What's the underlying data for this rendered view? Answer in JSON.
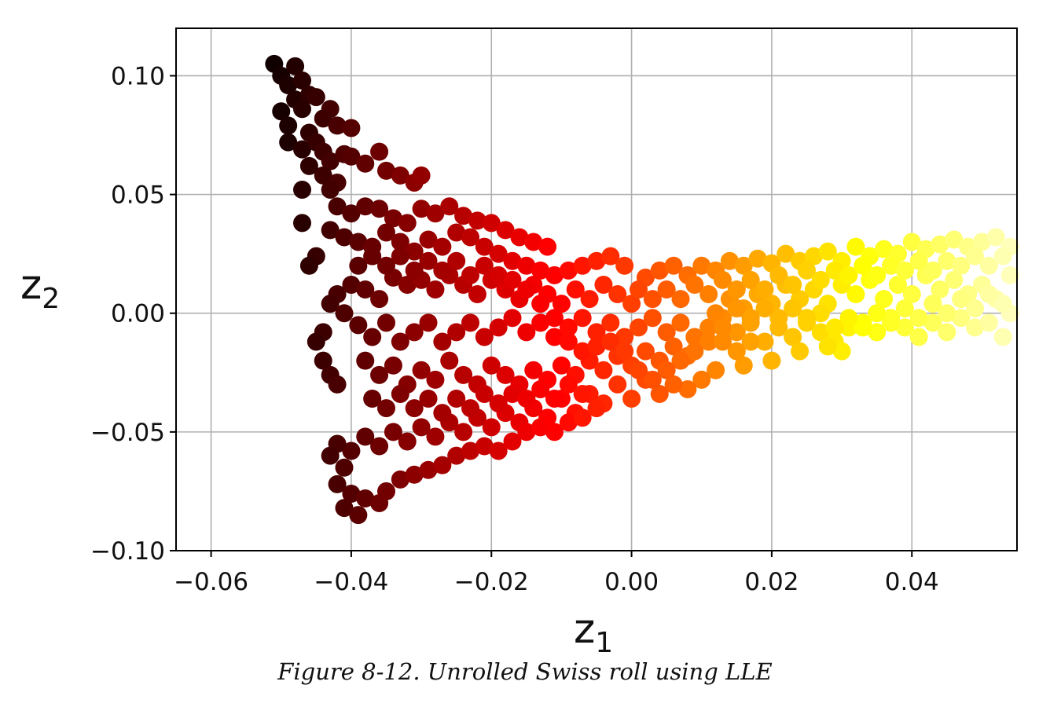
{
  "caption": "Figure 8-12. Unrolled Swiss roll using LLE",
  "chart_data": {
    "type": "scatter",
    "title": "",
    "xlabel": "z",
    "xlabel_sub": "1",
    "ylabel": "z",
    "ylabel_sub": "2",
    "xlim": [
      -0.065,
      0.055
    ],
    "ylim": [
      -0.1,
      0.12
    ],
    "xticks": [
      -0.06,
      -0.04,
      -0.02,
      0.0,
      0.02,
      0.04
    ],
    "xtick_labels": [
      "−0.06",
      "−0.04",
      "−0.02",
      "0.00",
      "0.02",
      "0.04"
    ],
    "yticks": [
      -0.1,
      -0.05,
      0.0,
      0.05,
      0.1
    ],
    "ytick_labels": [
      "−0.10",
      "−0.05",
      "0.00",
      "0.05",
      "0.10"
    ],
    "grid": true,
    "colormap": "hot",
    "marker": "circle",
    "points": [
      [
        -0.051,
        0.105
      ],
      [
        -0.05,
        0.1
      ],
      [
        -0.049,
        0.096
      ],
      [
        -0.048,
        0.104
      ],
      [
        -0.047,
        0.098
      ],
      [
        -0.048,
        0.09
      ],
      [
        -0.05,
        0.085
      ],
      [
        -0.046,
        0.092
      ],
      [
        -0.049,
        0.079
      ],
      [
        -0.047,
        0.086
      ],
      [
        -0.045,
        0.091
      ],
      [
        -0.043,
        0.086
      ],
      [
        -0.044,
        0.082
      ],
      [
        -0.042,
        0.079
      ],
      [
        -0.04,
        0.078
      ],
      [
        -0.046,
        0.076
      ],
      [
        -0.049,
        0.072
      ],
      [
        -0.047,
        0.069
      ],
      [
        -0.045,
        0.072
      ],
      [
        -0.044,
        0.068
      ],
      [
        -0.043,
        0.064
      ],
      [
        -0.041,
        0.067
      ],
      [
        -0.046,
        0.062
      ],
      [
        -0.044,
        0.058
      ],
      [
        -0.042,
        0.055
      ],
      [
        -0.04,
        0.066
      ],
      [
        -0.038,
        0.063
      ],
      [
        -0.036,
        0.068
      ],
      [
        -0.035,
        0.06
      ],
      [
        -0.033,
        0.058
      ],
      [
        -0.031,
        0.055
      ],
      [
        -0.03,
        0.058
      ],
      [
        -0.047,
        0.052
      ],
      [
        -0.047,
        0.038
      ],
      [
        -0.043,
        0.052
      ],
      [
        -0.042,
        0.045
      ],
      [
        -0.04,
        0.042
      ],
      [
        -0.038,
        0.045
      ],
      [
        -0.036,
        0.044
      ],
      [
        -0.034,
        0.04
      ],
      [
        -0.032,
        0.038
      ],
      [
        -0.03,
        0.044
      ],
      [
        -0.028,
        0.042
      ],
      [
        -0.026,
        0.045
      ],
      [
        -0.024,
        0.041
      ],
      [
        -0.022,
        0.039
      ],
      [
        -0.02,
        0.038
      ],
      [
        -0.018,
        0.035
      ],
      [
        -0.016,
        0.032
      ],
      [
        -0.014,
        0.03
      ],
      [
        -0.012,
        0.028
      ],
      [
        -0.045,
        0.024
      ],
      [
        -0.046,
        0.02
      ],
      [
        -0.043,
        0.035
      ],
      [
        -0.041,
        0.032
      ],
      [
        -0.039,
        0.03
      ],
      [
        -0.037,
        0.028
      ],
      [
        -0.035,
        0.034
      ],
      [
        -0.033,
        0.03
      ],
      [
        -0.031,
        0.026
      ],
      [
        -0.029,
        0.031
      ],
      [
        -0.027,
        0.028
      ],
      [
        -0.025,
        0.034
      ],
      [
        -0.023,
        0.032
      ],
      [
        -0.021,
        0.028
      ],
      [
        -0.019,
        0.025
      ],
      [
        -0.017,
        0.022
      ],
      [
        -0.015,
        0.02
      ],
      [
        -0.013,
        0.018
      ],
      [
        -0.011,
        0.016
      ],
      [
        -0.009,
        0.018
      ],
      [
        -0.007,
        0.02
      ],
      [
        -0.005,
        0.022
      ],
      [
        -0.003,
        0.024
      ],
      [
        -0.001,
        0.02
      ],
      [
        -0.042,
        0.008
      ],
      [
        -0.043,
        0.004
      ],
      [
        -0.041,
        0.0
      ],
      [
        -0.04,
        0.012
      ],
      [
        -0.038,
        0.01
      ],
      [
        -0.036,
        0.006
      ],
      [
        -0.034,
        0.015
      ],
      [
        -0.032,
        0.012
      ],
      [
        -0.03,
        0.014
      ],
      [
        -0.028,
        0.01
      ],
      [
        -0.026,
        0.016
      ],
      [
        -0.024,
        0.012
      ],
      [
        -0.022,
        0.008
      ],
      [
        -0.02,
        0.014
      ],
      [
        -0.018,
        0.01
      ],
      [
        -0.016,
        0.006
      ],
      [
        -0.014,
        0.012
      ],
      [
        -0.012,
        0.008
      ],
      [
        -0.01,
        0.004
      ],
      [
        -0.008,
        0.01
      ],
      [
        -0.006,
        0.006
      ],
      [
        -0.004,
        0.012
      ],
      [
        -0.002,
        0.008
      ],
      [
        0.0,
        0.004
      ],
      [
        0.002,
        0.015
      ],
      [
        0.004,
        0.018
      ],
      [
        0.006,
        0.02
      ],
      [
        0.008,
        0.016
      ],
      [
        0.01,
        0.02
      ],
      [
        0.012,
        0.018
      ],
      [
        0.014,
        0.022
      ],
      [
        0.016,
        0.02
      ],
      [
        0.018,
        0.023
      ],
      [
        0.02,
        0.021
      ],
      [
        0.022,
        0.025
      ],
      [
        0.024,
        0.022
      ],
      [
        0.026,
        0.024
      ],
      [
        0.028,
        0.026
      ],
      [
        0.03,
        0.022
      ],
      [
        0.032,
        0.028
      ],
      [
        0.034,
        0.024
      ],
      [
        0.036,
        0.027
      ],
      [
        0.038,
        0.025
      ],
      [
        0.04,
        0.03
      ],
      [
        0.042,
        0.027
      ],
      [
        0.044,
        0.029
      ],
      [
        0.046,
        0.031
      ],
      [
        0.048,
        0.028
      ],
      [
        0.05,
        0.03
      ],
      [
        0.052,
        0.032
      ],
      [
        0.054,
        0.028
      ],
      [
        -0.044,
        -0.008
      ],
      [
        -0.045,
        -0.012
      ],
      [
        -0.044,
        -0.02
      ],
      [
        -0.043,
        -0.026
      ],
      [
        -0.042,
        -0.03
      ],
      [
        -0.039,
        -0.005
      ],
      [
        -0.037,
        -0.01
      ],
      [
        -0.035,
        -0.004
      ],
      [
        -0.033,
        -0.012
      ],
      [
        -0.031,
        -0.008
      ],
      [
        -0.029,
        -0.004
      ],
      [
        -0.027,
        -0.012
      ],
      [
        -0.025,
        -0.008
      ],
      [
        -0.023,
        -0.004
      ],
      [
        -0.021,
        -0.01
      ],
      [
        -0.019,
        -0.006
      ],
      [
        -0.017,
        -0.002
      ],
      [
        -0.015,
        -0.008
      ],
      [
        -0.013,
        -0.004
      ],
      [
        -0.011,
        -0.01
      ],
      [
        -0.009,
        -0.006
      ],
      [
        -0.007,
        -0.002
      ],
      [
        -0.005,
        -0.008
      ],
      [
        -0.003,
        -0.004
      ],
      [
        -0.001,
        -0.01
      ],
      [
        0.001,
        -0.006
      ],
      [
        0.003,
        -0.002
      ],
      [
        0.005,
        -0.008
      ],
      [
        0.007,
        -0.004
      ],
      [
        0.009,
        -0.01
      ],
      [
        0.011,
        -0.006
      ],
      [
        0.013,
        -0.002
      ],
      [
        0.015,
        -0.008
      ],
      [
        0.017,
        -0.004
      ],
      [
        0.019,
        -0.012
      ],
      [
        0.021,
        -0.006
      ],
      [
        0.023,
        -0.01
      ],
      [
        0.025,
        -0.004
      ],
      [
        0.027,
        -0.008
      ],
      [
        0.029,
        -0.012
      ],
      [
        0.031,
        -0.006
      ],
      [
        0.033,
        -0.004
      ],
      [
        0.035,
        -0.008
      ],
      [
        0.037,
        -0.002
      ],
      [
        0.039,
        -0.006
      ],
      [
        0.041,
        -0.01
      ],
      [
        0.043,
        -0.004
      ],
      [
        0.045,
        -0.008
      ],
      [
        0.047,
        -0.002
      ],
      [
        0.049,
        -0.006
      ],
      [
        0.051,
        -0.004
      ],
      [
        0.053,
        -0.01
      ],
      [
        0.054,
        0.0
      ],
      [
        0.052,
        0.006
      ],
      [
        0.05,
        0.012
      ],
      [
        0.048,
        0.008
      ],
      [
        0.046,
        0.014
      ],
      [
        0.044,
        0.01
      ],
      [
        0.042,
        0.016
      ],
      [
        0.04,
        0.008
      ],
      [
        0.038,
        0.012
      ],
      [
        0.036,
        0.006
      ],
      [
        0.034,
        0.014
      ],
      [
        0.032,
        0.008
      ],
      [
        0.03,
        0.012
      ],
      [
        0.028,
        0.004
      ],
      [
        0.026,
        0.01
      ],
      [
        0.024,
        0.006
      ],
      [
        0.022,
        0.012
      ],
      [
        0.02,
        0.004
      ],
      [
        0.018,
        0.008
      ],
      [
        0.016,
        0.002
      ],
      [
        0.014,
        0.006
      ],
      [
        0.012,
        0.0
      ],
      [
        0.03,
        -0.016
      ],
      [
        0.028,
        -0.014
      ],
      [
        0.024,
        -0.016
      ],
      [
        0.02,
        -0.02
      ],
      [
        0.016,
        -0.022
      ],
      [
        0.012,
        -0.024
      ],
      [
        0.01,
        -0.028
      ],
      [
        0.008,
        -0.032
      ],
      [
        0.006,
        -0.03
      ],
      [
        0.004,
        -0.034
      ],
      [
        0.002,
        -0.028
      ],
      [
        0.0,
        -0.036
      ],
      [
        -0.002,
        -0.03
      ],
      [
        -0.004,
        -0.038
      ],
      [
        -0.006,
        -0.034
      ],
      [
        -0.008,
        -0.042
      ],
      [
        -0.01,
        -0.036
      ],
      [
        -0.012,
        -0.044
      ],
      [
        -0.014,
        -0.04
      ],
      [
        -0.016,
        -0.046
      ],
      [
        -0.018,
        -0.042
      ],
      [
        -0.02,
        -0.048
      ],
      [
        -0.022,
        -0.044
      ],
      [
        -0.024,
        -0.05
      ],
      [
        -0.026,
        -0.046
      ],
      [
        -0.028,
        -0.052
      ],
      [
        -0.03,
        -0.048
      ],
      [
        -0.032,
        -0.054
      ],
      [
        -0.034,
        -0.05
      ],
      [
        -0.036,
        -0.056
      ],
      [
        -0.038,
        -0.052
      ],
      [
        -0.04,
        -0.058
      ],
      [
        -0.042,
        -0.055
      ],
      [
        -0.043,
        -0.06
      ],
      [
        -0.041,
        -0.065
      ],
      [
        -0.042,
        -0.072
      ],
      [
        -0.04,
        -0.076
      ],
      [
        -0.038,
        -0.078
      ],
      [
        -0.041,
        -0.082
      ],
      [
        -0.039,
        -0.085
      ],
      [
        -0.036,
        -0.08
      ],
      [
        -0.035,
        -0.075
      ],
      [
        -0.033,
        -0.07
      ],
      [
        -0.031,
        -0.068
      ],
      [
        -0.029,
        -0.066
      ],
      [
        -0.027,
        -0.064
      ],
      [
        -0.025,
        -0.06
      ],
      [
        -0.023,
        -0.058
      ],
      [
        -0.021,
        -0.056
      ],
      [
        -0.019,
        -0.058
      ],
      [
        -0.017,
        -0.054
      ],
      [
        -0.015,
        -0.05
      ],
      [
        -0.013,
        -0.048
      ],
      [
        -0.011,
        -0.05
      ],
      [
        -0.009,
        -0.046
      ],
      [
        -0.007,
        -0.044
      ],
      [
        -0.005,
        -0.04
      ],
      [
        -0.038,
        -0.02
      ],
      [
        -0.036,
        -0.026
      ],
      [
        -0.034,
        -0.022
      ],
      [
        -0.032,
        -0.03
      ],
      [
        -0.03,
        -0.024
      ],
      [
        -0.028,
        -0.028
      ],
      [
        -0.026,
        -0.02
      ],
      [
        -0.024,
        -0.026
      ],
      [
        -0.022,
        -0.03
      ],
      [
        -0.02,
        -0.022
      ],
      [
        -0.018,
        -0.026
      ],
      [
        -0.016,
        -0.03
      ],
      [
        -0.014,
        -0.024
      ],
      [
        -0.012,
        -0.028
      ],
      [
        -0.01,
        -0.022
      ],
      [
        -0.008,
        -0.026
      ],
      [
        -0.006,
        -0.02
      ],
      [
        -0.004,
        -0.024
      ],
      [
        -0.002,
        -0.018
      ],
      [
        0.0,
        -0.022
      ],
      [
        0.002,
        -0.016
      ],
      [
        0.004,
        -0.02
      ],
      [
        0.006,
        -0.014
      ],
      [
        0.008,
        -0.018
      ],
      [
        -0.037,
        -0.036
      ],
      [
        -0.035,
        -0.04
      ],
      [
        -0.033,
        -0.034
      ],
      [
        -0.031,
        -0.04
      ],
      [
        -0.029,
        -0.036
      ],
      [
        -0.027,
        -0.042
      ],
      [
        -0.025,
        -0.036
      ],
      [
        -0.023,
        -0.04
      ],
      [
        -0.021,
        -0.034
      ],
      [
        -0.019,
        -0.038
      ],
      [
        -0.017,
        -0.034
      ],
      [
        -0.015,
        -0.036
      ],
      [
        -0.013,
        -0.032
      ],
      [
        -0.011,
        -0.036
      ],
      [
        -0.009,
        -0.03
      ],
      [
        -0.007,
        -0.034
      ],
      [
        -0.039,
        0.02
      ],
      [
        -0.037,
        0.024
      ],
      [
        -0.035,
        0.02
      ],
      [
        -0.033,
        0.024
      ],
      [
        -0.031,
        0.018
      ],
      [
        -0.029,
        0.022
      ],
      [
        -0.027,
        0.018
      ],
      [
        -0.025,
        0.022
      ],
      [
        -0.023,
        0.016
      ],
      [
        -0.021,
        0.02
      ],
      [
        -0.019,
        0.016
      ],
      [
        -0.017,
        0.014
      ],
      [
        -0.015,
        0.01
      ],
      [
        -0.013,
        0.004
      ],
      [
        -0.011,
        -0.002
      ],
      [
        -0.009,
        -0.012
      ],
      [
        -0.007,
        -0.016
      ],
      [
        -0.005,
        -0.014
      ],
      [
        -0.003,
        -0.012
      ],
      [
        -0.001,
        -0.016
      ],
      [
        0.001,
        0.01
      ],
      [
        0.003,
        0.006
      ],
      [
        0.005,
        0.01
      ],
      [
        0.007,
        0.006
      ],
      [
        0.009,
        0.012
      ],
      [
        0.011,
        0.008
      ],
      [
        0.013,
        0.014
      ],
      [
        0.015,
        0.01
      ],
      [
        0.017,
        0.014
      ],
      [
        0.019,
        0.01
      ],
      [
        0.021,
        0.016
      ],
      [
        0.023,
        0.012
      ],
      [
        0.025,
        0.018
      ],
      [
        0.027,
        0.014
      ],
      [
        0.029,
        0.018
      ],
      [
        0.031,
        0.016
      ],
      [
        0.033,
        0.02
      ],
      [
        0.035,
        0.016
      ],
      [
        0.037,
        0.02
      ],
      [
        0.039,
        0.018
      ],
      [
        0.041,
        0.022
      ],
      [
        0.043,
        0.018
      ],
      [
        0.045,
        0.022
      ],
      [
        0.047,
        0.02
      ],
      [
        0.049,
        0.024
      ],
      [
        0.051,
        0.02
      ],
      [
        0.053,
        0.024
      ],
      [
        0.054,
        0.016
      ],
      [
        0.053,
        0.004
      ],
      [
        0.051,
        0.008
      ],
      [
        0.049,
        0.002
      ],
      [
        0.047,
        0.006
      ],
      [
        0.045,
        0.0
      ],
      [
        0.043,
        0.004
      ],
      [
        0.041,
        -0.002
      ],
      [
        0.039,
        0.002
      ],
      [
        0.037,
        -0.004
      ],
      [
        0.035,
        0.0
      ],
      [
        0.033,
        -0.006
      ],
      [
        0.031,
        -0.002
      ],
      [
        0.029,
        -0.006
      ],
      [
        0.027,
        0.0
      ],
      [
        0.025,
        -0.002
      ],
      [
        0.023,
        0.002
      ],
      [
        0.021,
        -0.002
      ],
      [
        0.019,
        0.002
      ],
      [
        0.017,
        -0.002
      ],
      [
        0.015,
        0.002
      ],
      [
        0.013,
        -0.006
      ],
      [
        0.011,
        -0.012
      ],
      [
        0.009,
        -0.016
      ],
      [
        0.007,
        -0.02
      ],
      [
        0.005,
        -0.024
      ],
      [
        0.003,
        -0.028
      ],
      [
        0.001,
        -0.024
      ],
      [
        0.017,
        -0.012
      ],
      [
        0.015,
        -0.016
      ],
      [
        0.013,
        -0.012
      ]
    ]
  }
}
